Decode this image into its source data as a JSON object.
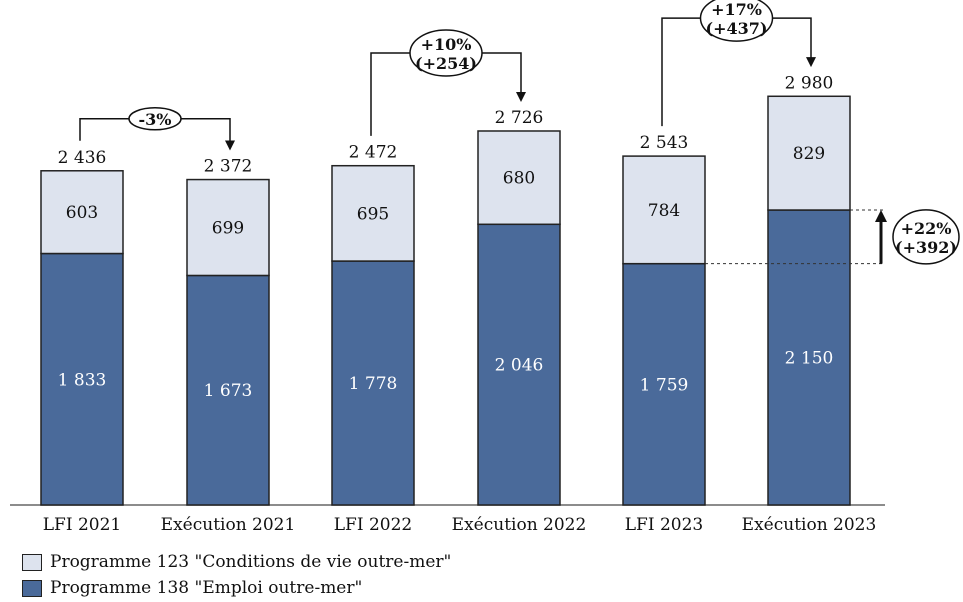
{
  "chart_data": {
    "type": "bar",
    "stacked": true,
    "categories": [
      "LFI 2021",
      "Exécution 2021",
      "LFI 2022",
      "Exécution 2022",
      "LFI 2023",
      "Exécution 2023"
    ],
    "series": [
      {
        "name": "Programme 138 \"Emploi outre-mer\"",
        "values": [
          1833,
          1673,
          1778,
          2046,
          1759,
          2150
        ],
        "labels": [
          "1 833",
          "1 673",
          "1 778",
          "2 046",
          "1 759",
          "2 150"
        ]
      },
      {
        "name": "Programme 123 \"Conditions de vie outre-mer\"",
        "values": [
          603,
          699,
          695,
          680,
          784,
          829
        ],
        "labels": [
          "603",
          "699",
          "695",
          "680",
          "784",
          "829"
        ]
      }
    ],
    "totals": [
      2436,
      2372,
      2472,
      2726,
      2543,
      2980
    ],
    "total_labels": [
      "2 436",
      "2 372",
      "2 472",
      "2 726",
      "2 543",
      "2 980"
    ],
    "ylim": [
      0,
      3100
    ],
    "legend_position": "bottom-left",
    "annotations": [
      {
        "from": 0,
        "to": 1,
        "lines": [
          "-3%"
        ]
      },
      {
        "from": 2,
        "to": 3,
        "lines": [
          "+10%",
          "(+254)"
        ]
      },
      {
        "from": 4,
        "to": 5,
        "lines": [
          "+17%",
          "(+437)"
        ]
      },
      {
        "type": "vertical",
        "series": "Programme 138",
        "from": 4,
        "to": 5,
        "lines": [
          "+22%",
          "(+392)"
        ]
      }
    ],
    "colors": {
      "programme_138": "#4a6a9a",
      "programme_123": "#dde3ee",
      "outline": "#222222"
    }
  }
}
